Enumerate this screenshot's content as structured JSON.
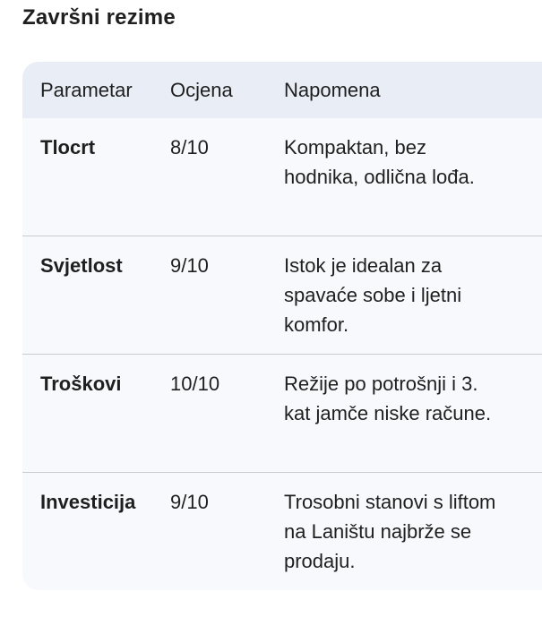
{
  "title": "Završni rezime",
  "table": {
    "headers": [
      "Parametar",
      "Ocjena",
      "Napomena"
    ],
    "rows": [
      [
        "Tlocrt",
        "8/10",
        "Kompaktan, bez hodnika, odlična lođa."
      ],
      [
        "Svjetlost",
        "9/10",
        "Istok je idealan za spavaće sobe i ljetni komfor."
      ],
      [
        "Troškovi",
        "10/10",
        "Režije po potrošnji i 3. kat jamče niske račune."
      ],
      [
        "Investicija",
        "9/10",
        "Trosobni stanovi s liftom na Laništu najbrže se prodaju."
      ]
    ]
  }
}
